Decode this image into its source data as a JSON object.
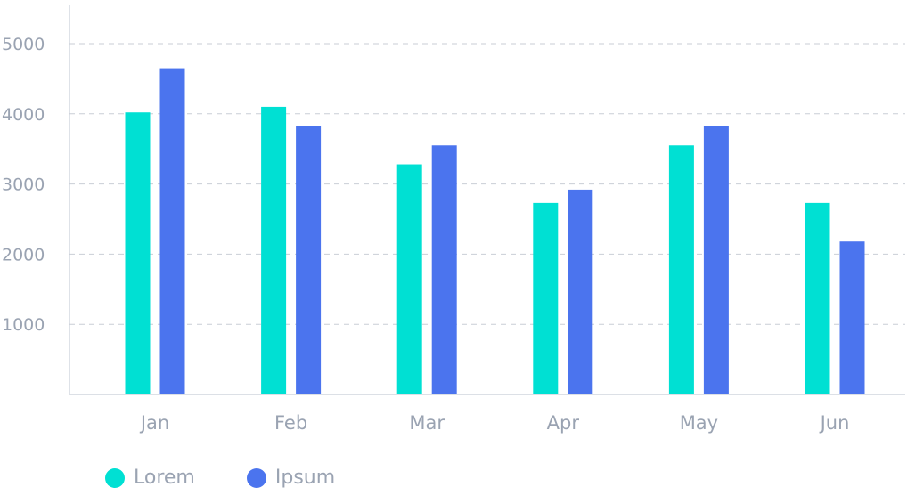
{
  "chart_data": {
    "type": "bar",
    "categories": [
      "Jan",
      "Feb",
      "Mar",
      "Apr",
      "May",
      "Jun"
    ],
    "series": [
      {
        "name": "Lorem",
        "color": "#00E0D3",
        "values": [
          4020,
          4100,
          3280,
          2730,
          3550,
          2730
        ]
      },
      {
        "name": "Ipsum",
        "color": "#4B74EE",
        "values": [
          4650,
          3830,
          3550,
          2920,
          3830,
          2180
        ]
      }
    ],
    "yticks": [
      "1000",
      "2000",
      "3000",
      "4000",
      "5000"
    ],
    "ylim": [
      0,
      5000
    ],
    "grid": true,
    "legend_position": "bottom-left"
  }
}
